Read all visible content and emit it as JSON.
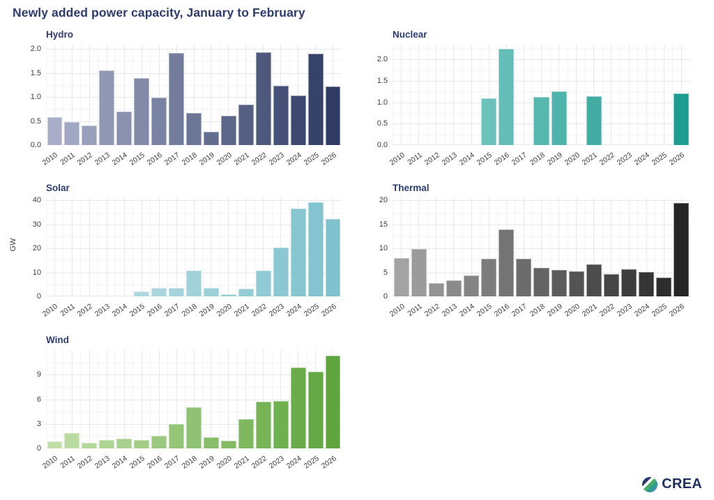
{
  "title": "Newly added power capacity, January to February",
  "axis_unit_label": "GW",
  "logo": {
    "text": "CREA"
  },
  "colors": {
    "title_navy": "#2d3c6e",
    "tick_label": "#3d3d3d",
    "grid_major": "#e7e7ee",
    "grid_minor": "#f3f3f8"
  },
  "categories": [
    "2010",
    "2011",
    "2012",
    "2013",
    "2014",
    "2015",
    "2016",
    "2017",
    "2018",
    "2019",
    "2020",
    "2021",
    "2022",
    "2023",
    "2024",
    "2025",
    "2026"
  ],
  "chart_data": [
    {
      "id": "hydro",
      "type": "bar",
      "title": "Hydro",
      "ylabel": "GW",
      "values": [
        0.58,
        0.48,
        0.4,
        1.55,
        0.69,
        1.39,
        0.98,
        1.92,
        0.67,
        0.27,
        0.61,
        0.84,
        1.93,
        1.23,
        1.03,
        1.9,
        1.22
      ],
      "ylim": [
        0,
        2.09
      ],
      "yticks": [
        0,
        0.5,
        1,
        1.5,
        2
      ],
      "ytick_labels": [
        "0.0",
        "0.5",
        "1.0",
        "1.5",
        "2.0"
      ],
      "bar_color_start": "#a8aec8",
      "bar_color_end": "#2e3b63",
      "grid": true,
      "legend": false
    },
    {
      "id": "nuclear",
      "type": "bar",
      "title": "Nuclear",
      "ylabel": "GW",
      "values": [
        0,
        0,
        0,
        0,
        0,
        1.09,
        2.26,
        0,
        1.13,
        1.25,
        0,
        1.15,
        0,
        0,
        0,
        0,
        1.21
      ],
      "ylim": [
        0,
        2.35
      ],
      "yticks": [
        0,
        0.5,
        1,
        1.5,
        2
      ],
      "ytick_labels": [
        "0.0",
        "0.5",
        "1.0",
        "1.5",
        "2.0"
      ],
      "bar_color_start": "#8fd3cd",
      "bar_color_end": "#1d9c91",
      "grid": true,
      "legend": false
    },
    {
      "id": "solar",
      "type": "bar",
      "title": "Solar",
      "ylabel": "GW",
      "values": [
        0,
        0,
        0,
        0,
        0,
        2.0,
        3.5,
        3.4,
        10.8,
        3.5,
        0.9,
        3.1,
        10.8,
        20.3,
        36.6,
        39.2,
        32.4
      ],
      "ylim": [
        0,
        41
      ],
      "yticks": [
        0,
        10,
        20,
        30,
        40
      ],
      "ytick_labels": [
        "0",
        "10",
        "20",
        "30",
        "40"
      ],
      "bar_color_start": "#c2e2e6",
      "bar_color_end": "#7fc2ce",
      "grid": true,
      "legend": false
    },
    {
      "id": "thermal",
      "type": "bar",
      "title": "Thermal",
      "ylabel": "GW",
      "values": [
        8.0,
        9.9,
        2.7,
        3.4,
        4.4,
        7.8,
        13.9,
        7.9,
        5.9,
        5.5,
        5.2,
        6.7,
        4.7,
        5.7,
        5.1,
        3.9,
        19.5
      ],
      "ylim": [
        0,
        20.5
      ],
      "yticks": [
        0,
        5,
        10,
        15,
        20
      ],
      "ytick_labels": [
        "0",
        "5",
        "10",
        "15",
        "20"
      ],
      "bar_color_start": "#a3a3a3",
      "bar_color_end": "#252525",
      "grid": true,
      "legend": false
    },
    {
      "id": "wind",
      "type": "bar",
      "title": "Wind",
      "ylabel": "GW",
      "values": [
        0.85,
        1.9,
        0.65,
        1.0,
        1.2,
        1.0,
        1.55,
        2.95,
        5.0,
        1.4,
        0.95,
        3.6,
        5.7,
        5.8,
        9.9,
        9.35,
        11.3
      ],
      "ylim": [
        0,
        12
      ],
      "yticks": [
        0,
        3,
        6,
        9
      ],
      "ytick_labels": [
        "0",
        "3",
        "6",
        "9"
      ],
      "bar_color_start": "#bfdfa6",
      "bar_color_end": "#5fa53d",
      "grid": true,
      "legend": false
    }
  ]
}
